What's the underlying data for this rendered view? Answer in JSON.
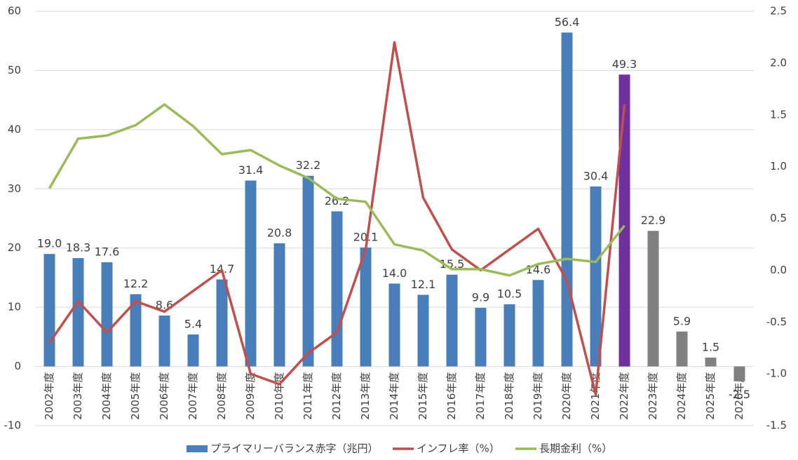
{
  "chart_data": {
    "type": "bar_line",
    "categories": [
      "2002年度",
      "2003年度",
      "2004年度",
      "2005年度",
      "2006年度",
      "2007年度",
      "2008年度",
      "2009年度",
      "2010年度",
      "2011年度",
      "2012年度",
      "2013年度",
      "2014年度",
      "2015年度",
      "2016年度",
      "2017年度",
      "2018年度",
      "2019年度",
      "2020年度",
      "2021年度",
      "2022年度",
      "2023年度",
      "2024年度",
      "2025年度",
      "2026年度"
    ],
    "series": [
      {
        "name": "プライマリーバランス赤字（兆円）",
        "type": "bar",
        "color": "#4a7ebb",
        "colors": [
          "#4a7ebb",
          "#4a7ebb",
          "#4a7ebb",
          "#4a7ebb",
          "#4a7ebb",
          "#4a7ebb",
          "#4a7ebb",
          "#4a7ebb",
          "#4a7ebb",
          "#4a7ebb",
          "#4a7ebb",
          "#4a7ebb",
          "#4a7ebb",
          "#4a7ebb",
          "#4a7ebb",
          "#4a7ebb",
          "#4a7ebb",
          "#4a7ebb",
          "#4a7ebb",
          "#4a7ebb",
          "#7030a0",
          "#808080",
          "#808080",
          "#808080",
          "#808080"
        ],
        "values": [
          19.0,
          18.3,
          17.6,
          12.2,
          8.6,
          5.4,
          14.7,
          31.4,
          20.8,
          32.2,
          26.2,
          20.1,
          14.0,
          12.1,
          15.5,
          9.9,
          10.5,
          14.6,
          56.4,
          30.4,
          49.3,
          22.9,
          5.9,
          1.5,
          -2.5
        ],
        "value_labels": [
          "19.0",
          "18.3",
          "17.6",
          "12.2",
          "8.6",
          "5.4",
          "14.7",
          "31.4",
          "20.8",
          "32.2",
          "26.2",
          "20.1",
          "14.0",
          "12.1",
          "15.5",
          "9.9",
          "10.5",
          "14.6",
          "56.4",
          "30.4",
          "49.3",
          "22.9",
          "5.9",
          "1.5",
          "-2.5"
        ]
      },
      {
        "name": "インフレ率（%）",
        "type": "line",
        "axis": "y2",
        "color": "#c0504d",
        "values": [
          -0.7,
          -0.3,
          -0.6,
          -0.3,
          -0.4,
          -0.2,
          0.0,
          -1.0,
          -1.1,
          -0.8,
          -0.6,
          0.2,
          2.2,
          0.7,
          0.2,
          0.0,
          0.2,
          0.4,
          -0.1,
          -1.2,
          1.6,
          null,
          null,
          null,
          null
        ]
      },
      {
        "name": "長期金利（%）",
        "type": "line",
        "axis": "y2",
        "color": "#9bbb59",
        "values": [
          0.79,
          1.27,
          1.3,
          1.4,
          1.6,
          1.39,
          1.12,
          1.16,
          1.01,
          0.89,
          0.69,
          0.66,
          0.25,
          0.19,
          0.01,
          0.01,
          -0.05,
          0.06,
          0.11,
          0.08,
          0.43,
          null,
          null,
          null,
          null
        ]
      }
    ],
    "ylim": [
      -10,
      60
    ],
    "yticks": [
      -10,
      0,
      10,
      20,
      30,
      40,
      50,
      60
    ],
    "y2lim": [
      -1.5,
      2.5
    ],
    "y2ticks": [
      -1.5,
      {
        "value": -1,
        "label": "-1.0"
      },
      -0.5,
      {
        "value": 0,
        "label": "0.0"
      },
      0.5,
      {
        "value": 1,
        "label": "1.0"
      },
      1.5,
      {
        "value": 2,
        "label": "2.0"
      },
      2.5
    ],
    "grid": true,
    "legend": "bottom"
  }
}
